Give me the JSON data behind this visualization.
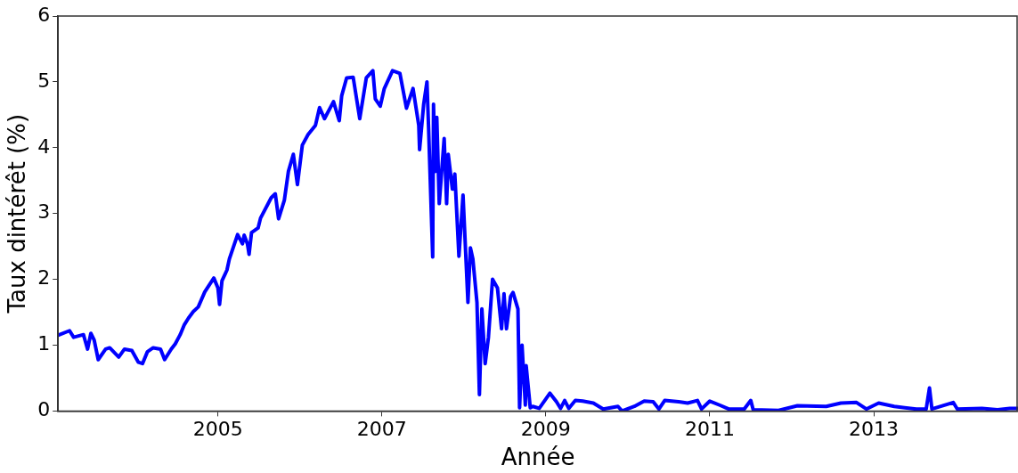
{
  "chart_data": {
    "type": "line",
    "xlabel": "Année",
    "ylabel": "Taux dintérêt (%)",
    "xlim": [
      2003.05,
      2014.76
    ],
    "ylim": [
      0,
      6
    ],
    "xticks": [
      2005,
      2007,
      2009,
      2011,
      2013
    ],
    "yticks": [
      0,
      1,
      2,
      3,
      4,
      5,
      6
    ],
    "grid": false,
    "legend": false,
    "marker": "none",
    "line_style": "solid",
    "series": [
      {
        "color": "#0000ff",
        "x": [
          2003.05,
          2003.19,
          2003.24,
          2003.36,
          2003.41,
          2003.45,
          2003.49,
          2003.54,
          2003.63,
          2003.68,
          2003.79,
          2003.86,
          2003.95,
          2004.03,
          2004.08,
          2004.14,
          2004.21,
          2004.3,
          2004.35,
          2004.43,
          2004.48,
          2004.54,
          2004.59,
          2004.64,
          2004.7,
          2004.76,
          2004.84,
          2004.95,
          2005.0,
          2005.02,
          2005.05,
          2005.11,
          2005.14,
          2005.24,
          2005.3,
          2005.32,
          2005.36,
          2005.38,
          2005.41,
          2005.49,
          2005.52,
          2005.65,
          2005.7,
          2005.74,
          2005.81,
          2005.86,
          2005.92,
          2005.97,
          2006.03,
          2006.1,
          2006.19,
          2006.24,
          2006.3,
          2006.41,
          2006.48,
          2006.51,
          2006.57,
          2006.65,
          2006.73,
          2006.81,
          2006.89,
          2006.92,
          2006.98,
          2007.03,
          2007.13,
          2007.22,
          2007.3,
          2007.38,
          2007.45,
          2007.46,
          2007.51,
          2007.55,
          2007.57,
          2007.62,
          2007.63,
          2007.65,
          2007.67,
          2007.7,
          2007.76,
          2007.79,
          2007.81,
          2007.86,
          2007.89,
          2007.94,
          2007.99,
          2008.05,
          2008.08,
          2008.11,
          2008.16,
          2008.19,
          2008.22,
          2008.26,
          2008.3,
          2008.35,
          2008.41,
          2008.46,
          2008.49,
          2008.52,
          2008.57,
          2008.6,
          2008.66,
          2008.68,
          2008.71,
          2008.75,
          2008.76,
          2008.81,
          2008.84,
          2008.92,
          2009.05,
          2009.13,
          2009.18,
          2009.23,
          2009.28,
          2009.36,
          2009.45,
          2009.58,
          2009.7,
          2009.88,
          2009.93,
          2010.08,
          2010.2,
          2010.31,
          2010.38,
          2010.45,
          2010.62,
          2010.73,
          2010.85,
          2010.9,
          2011.0,
          2011.12,
          2011.23,
          2011.42,
          2011.5,
          2011.53,
          2011.84,
          2012.07,
          2012.42,
          2012.6,
          2012.79,
          2012.91,
          2013.06,
          2013.25,
          2013.52,
          2013.64,
          2013.68,
          2013.71,
          2013.97,
          2014.02,
          2014.32,
          2014.51,
          2014.66,
          2014.76
        ],
        "values": [
          1.15,
          1.22,
          1.12,
          1.16,
          0.94,
          1.18,
          1.08,
          0.78,
          0.94,
          0.96,
          0.82,
          0.94,
          0.92,
          0.74,
          0.72,
          0.9,
          0.96,
          0.94,
          0.78,
          0.94,
          1.02,
          1.16,
          1.31,
          1.41,
          1.51,
          1.58,
          1.81,
          2.02,
          1.87,
          1.62,
          1.98,
          2.14,
          2.31,
          2.68,
          2.54,
          2.67,
          2.54,
          2.38,
          2.71,
          2.78,
          2.93,
          3.24,
          3.3,
          2.92,
          3.2,
          3.64,
          3.9,
          3.44,
          4.04,
          4.2,
          4.34,
          4.61,
          4.44,
          4.7,
          4.41,
          4.79,
          5.06,
          5.07,
          4.44,
          5.06,
          5.17,
          4.74,
          4.63,
          4.9,
          5.17,
          5.13,
          4.6,
          4.9,
          4.34,
          3.97,
          4.66,
          5.0,
          4.3,
          2.34,
          4.66,
          3.64,
          4.46,
          3.15,
          4.14,
          3.15,
          3.9,
          3.37,
          3.6,
          2.35,
          3.28,
          1.65,
          2.48,
          2.31,
          1.65,
          0.25,
          1.55,
          0.72,
          1.12,
          2.0,
          1.87,
          1.25,
          1.78,
          1.25,
          1.74,
          1.8,
          1.55,
          0.05,
          1.0,
          0.09,
          0.69,
          0.05,
          0.07,
          0.04,
          0.27,
          0.14,
          0.04,
          0.16,
          0.04,
          0.16,
          0.15,
          0.12,
          0.03,
          0.07,
          0.0,
          0.07,
          0.15,
          0.14,
          0.03,
          0.16,
          0.14,
          0.12,
          0.16,
          0.03,
          0.15,
          0.09,
          0.03,
          0.03,
          0.16,
          0.02,
          0.01,
          0.08,
          0.07,
          0.12,
          0.13,
          0.03,
          0.12,
          0.07,
          0.03,
          0.03,
          0.35,
          0.03,
          0.13,
          0.03,
          0.04,
          0.02,
          0.04,
          0.04
        ]
      }
    ]
  }
}
